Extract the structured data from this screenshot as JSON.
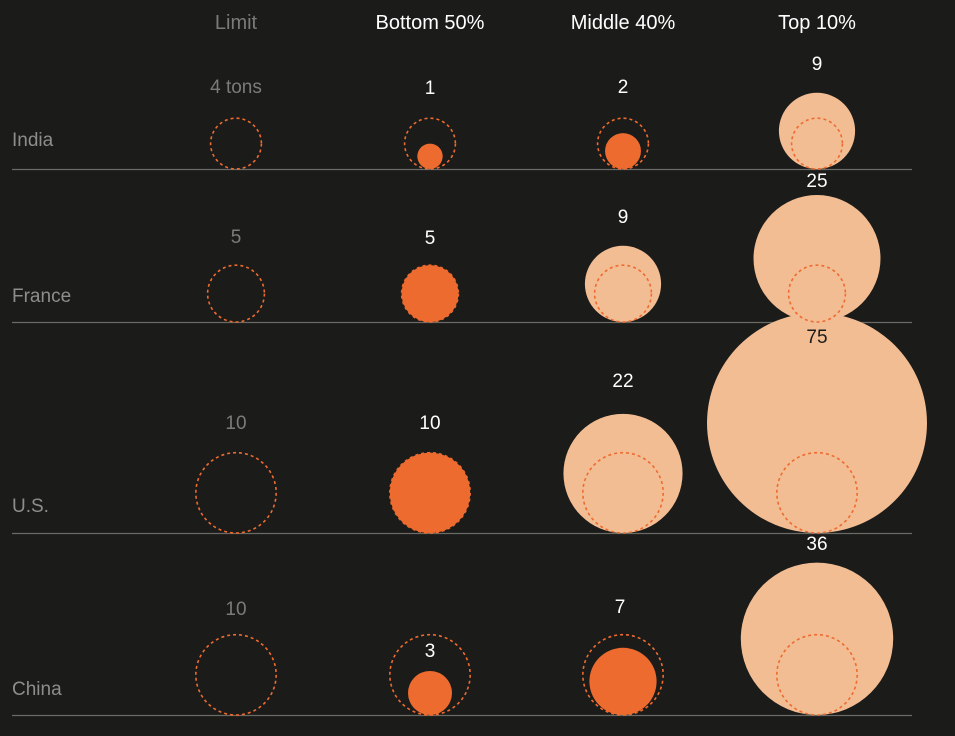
{
  "chart_data": {
    "type": "bubble",
    "columns": [
      {
        "key": "limit",
        "label": "Limit"
      },
      {
        "key": "bottom50",
        "label": "Bottom 50%"
      },
      {
        "key": "middle40",
        "label": "Middle 40%"
      },
      {
        "key": "top10",
        "label": "Top 10%"
      }
    ],
    "rows": [
      {
        "country": "India",
        "limit": 4,
        "limit_label": "4 tons",
        "bottom50": 1,
        "middle40": 2,
        "top10": 9
      },
      {
        "country": "France",
        "limit": 5,
        "limit_label": "5",
        "bottom50": 5,
        "middle40": 9,
        "top10": 25
      },
      {
        "country": "U.S.",
        "limit": 10,
        "limit_label": "10",
        "bottom50": 10,
        "middle40": 22,
        "top10": 75
      },
      {
        "country": "China",
        "limit": 10,
        "limit_label": "10",
        "bottom50": 3,
        "middle40": 7,
        "top10": 36
      }
    ]
  },
  "colors": {
    "background": "#1b1b19",
    "below_limit": "#ee6b2f",
    "above_limit": "#f3bd93",
    "limit_ring": "#ee6b2f",
    "divider": "#6a6a66",
    "header": "#ffffff",
    "header_muted": "#7b7b78",
    "country": "#8d8d89",
    "value": "#ffffff"
  }
}
